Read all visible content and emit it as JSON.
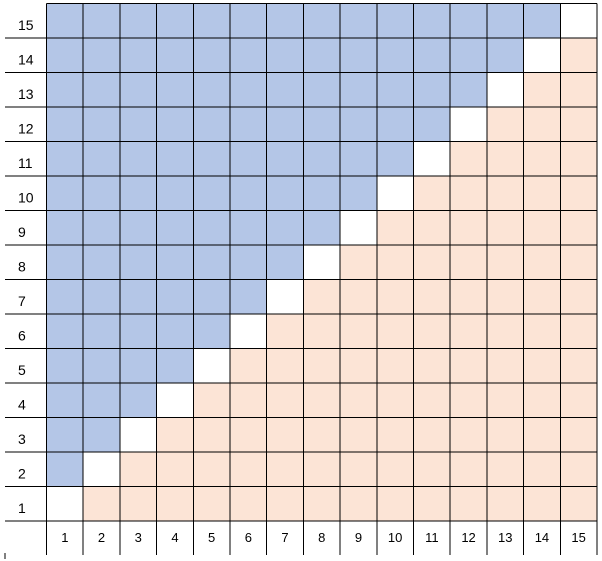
{
  "grid": {
    "row_labels": [
      "15",
      "14",
      "13",
      "12",
      "11",
      "10",
      "9",
      "8",
      "7",
      "6",
      "5",
      "4",
      "3",
      "2",
      "1"
    ],
    "column_labels": [
      "1",
      "2",
      "3",
      "4",
      "5",
      "6",
      "7",
      "8",
      "9",
      "10",
      "11",
      "12",
      "13",
      "14",
      "15"
    ]
  }
}
